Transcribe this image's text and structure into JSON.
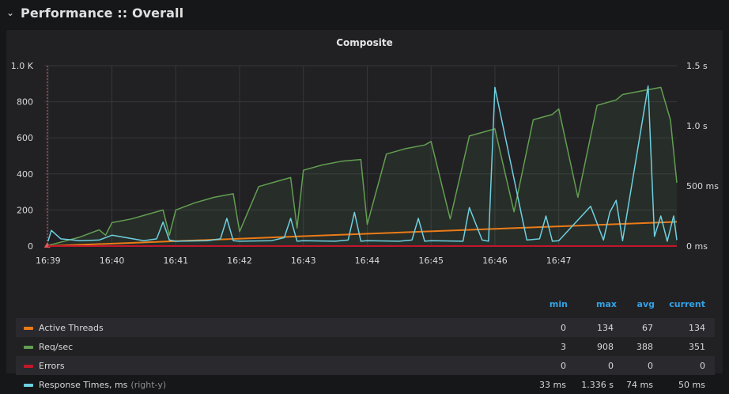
{
  "row": {
    "title": "Performance :: Overall",
    "chevron": "chevron-down-icon"
  },
  "panel": {
    "title": "Composite"
  },
  "legend": {
    "headers": {
      "min": "min",
      "max": "max",
      "avg": "avg",
      "current": "current"
    },
    "rows": [
      {
        "name": "Active Threads",
        "note": "",
        "color": "#eb7b18",
        "min": "0",
        "max": "134",
        "avg": "67",
        "current": "134"
      },
      {
        "name": "Req/sec",
        "note": "",
        "color": "#629e51",
        "min": "3",
        "max": "908",
        "avg": "388",
        "current": "351"
      },
      {
        "name": "Errors",
        "note": "",
        "color": "#c4162a",
        "min": "0",
        "max": "0",
        "avg": "0",
        "current": "0"
      },
      {
        "name": "Response Times, ms",
        "note": "(right-y)",
        "color": "#6ed0e0",
        "min": "33 ms",
        "max": "1.336 s",
        "avg": "74 ms",
        "current": "50 ms"
      }
    ]
  },
  "chart_data": {
    "type": "line",
    "title": "Composite",
    "x_ticks": [
      "16:39",
      "16:40",
      "16:41",
      "16:42",
      "16:43",
      "16:44",
      "16:45",
      "16:46",
      "16:47"
    ],
    "x_range_minutes": [
      -0.06,
      9.85
    ],
    "y_left": {
      "ticks": [
        "0",
        "200",
        "400",
        "600",
        "800",
        "1.0 K"
      ],
      "range": [
        0,
        1000
      ]
    },
    "y_right": {
      "ticks": [
        "0 ms",
        "500 ms",
        "1.0 s",
        "1.5 s"
      ],
      "range_ms": [
        0,
        1500
      ]
    },
    "grid": true,
    "legend_placement": "bottom-table",
    "series": [
      {
        "name": "Active Threads",
        "axis": "left",
        "x": [
          0,
          9.85
        ],
        "y": [
          0,
          134
        ]
      },
      {
        "name": "Req/sec",
        "axis": "left",
        "x": [
          0.0,
          0.5,
          0.8,
          0.9,
          1.0,
          1.3,
          1.6,
          1.8,
          1.9,
          2.0,
          2.3,
          2.6,
          2.9,
          3.0,
          3.3,
          3.6,
          3.8,
          3.9,
          4.0,
          4.3,
          4.6,
          4.9,
          5.0,
          5.3,
          5.6,
          5.9,
          6.0,
          6.3,
          6.6,
          6.9,
          7.0,
          7.3,
          7.6,
          7.9,
          8.0,
          8.3,
          8.6,
          8.9,
          9.0,
          9.3,
          9.6,
          9.75,
          9.85
        ],
        "y": [
          3,
          50,
          90,
          60,
          130,
          150,
          180,
          200,
          60,
          200,
          240,
          270,
          290,
          80,
          330,
          360,
          380,
          100,
          420,
          450,
          470,
          480,
          120,
          510,
          540,
          560,
          580,
          150,
          610,
          640,
          650,
          190,
          700,
          730,
          760,
          270,
          780,
          810,
          840,
          860,
          880,
          700,
          351
        ]
      },
      {
        "name": "Errors",
        "axis": "left",
        "x": [
          0,
          9.85
        ],
        "y": [
          0,
          0
        ]
      },
      {
        "name": "Response Times, ms",
        "axis": "right",
        "x": [
          0.0,
          0.05,
          0.2,
          0.5,
          0.8,
          1.0,
          1.5,
          1.7,
          1.8,
          1.9,
          2.0,
          2.5,
          2.7,
          2.8,
          2.9,
          3.0,
          3.5,
          3.7,
          3.8,
          3.9,
          4.0,
          4.5,
          4.7,
          4.8,
          4.9,
          5.0,
          5.5,
          5.7,
          5.8,
          5.9,
          6.0,
          6.5,
          6.6,
          6.8,
          6.9,
          7.0,
          7.5,
          7.7,
          7.8,
          7.9,
          8.0,
          8.5,
          8.7,
          8.8,
          8.9,
          9.0,
          9.4,
          9.5,
          9.6,
          9.7,
          9.8,
          9.85
        ],
        "y": [
          40,
          130,
          60,
          45,
          50,
          90,
          45,
          60,
          200,
          50,
          40,
          45,
          60,
          230,
          45,
          40,
          45,
          70,
          230,
          40,
          45,
          40,
          50,
          280,
          40,
          45,
          40,
          50,
          230,
          40,
          45,
          40,
          320,
          50,
          40,
          1320,
          50,
          60,
          250,
          40,
          45,
          330,
          50,
          280,
          380,
          45,
          1330,
          80,
          250,
          40,
          250,
          50
        ]
      }
    ]
  }
}
